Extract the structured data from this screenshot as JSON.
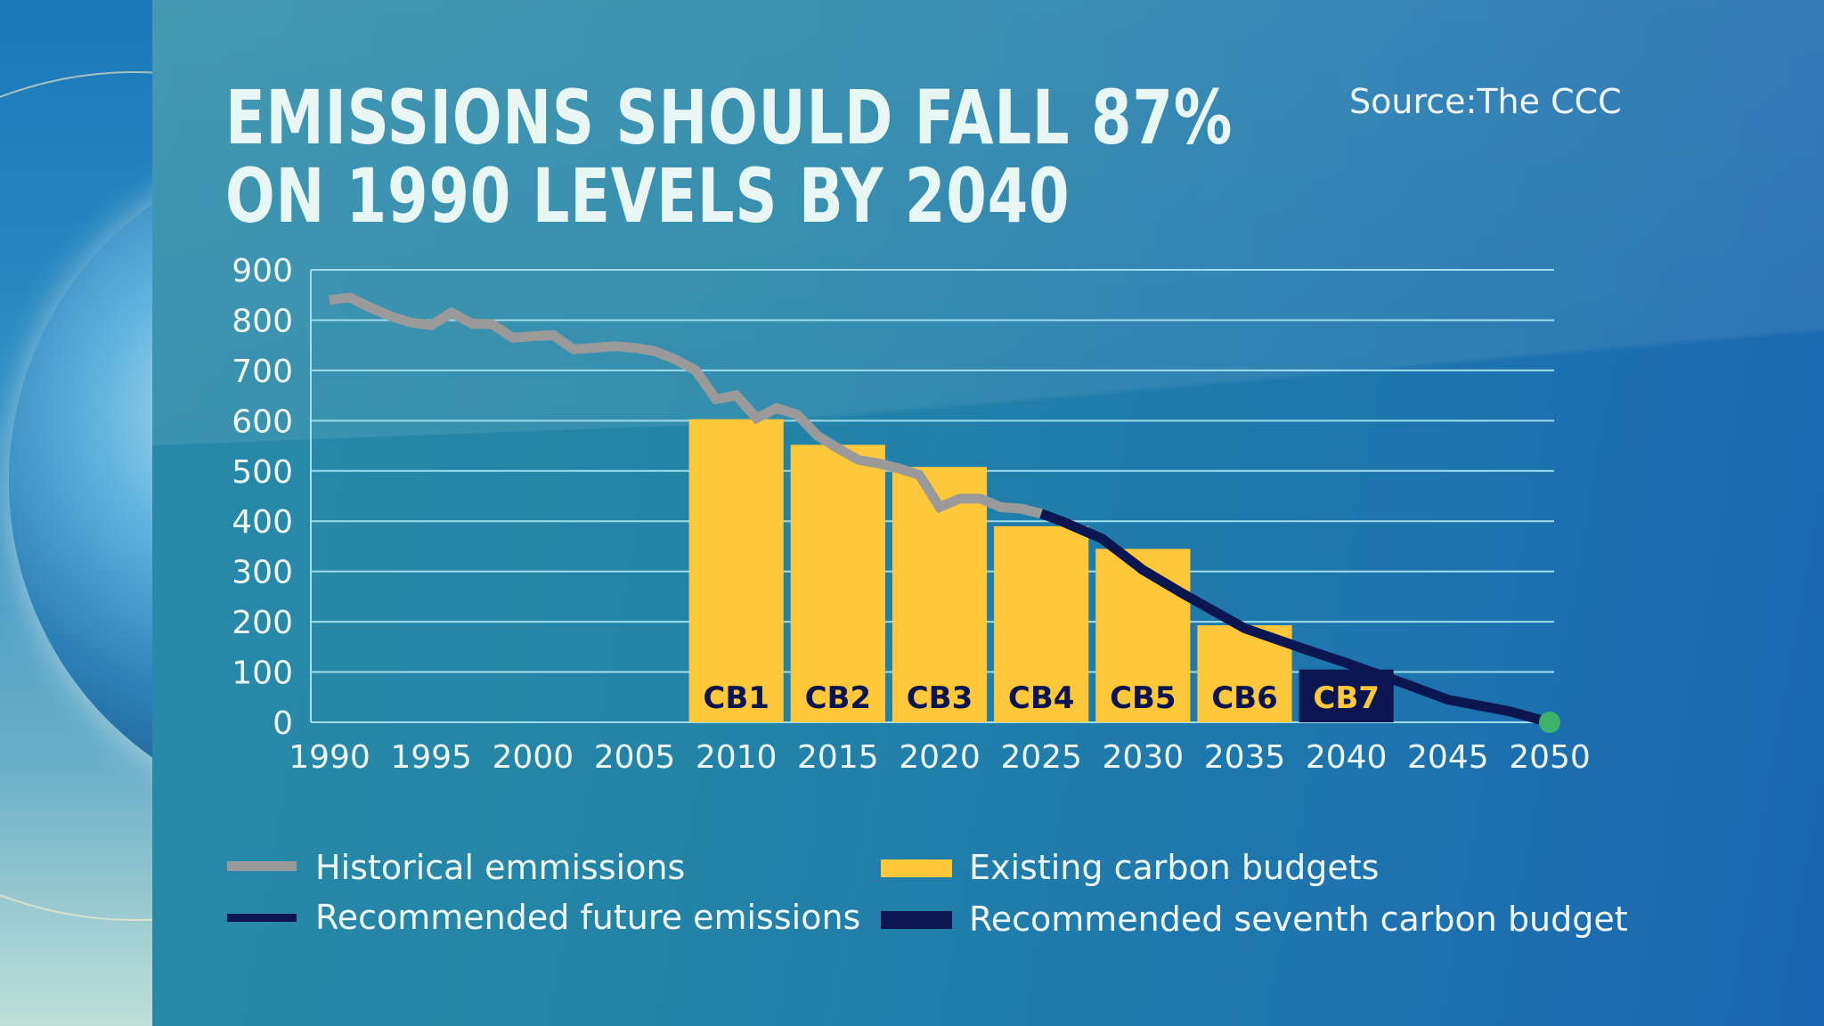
{
  "title": "EMISSIONS SHOULD FALL 87% ON 1990 LEVELS BY 2040",
  "source": "Source:The CCC",
  "colors": {
    "historical": "#9a9a9a",
    "future": "#0b1650",
    "budget": "#ffc83a",
    "budget7": "#0b1650",
    "endpoint": "#3cb26a",
    "grid": "#9fdcec"
  },
  "chart_data": {
    "type": "bar+line",
    "xlim": [
      1990,
      2050
    ],
    "ylim": [
      0,
      900
    ],
    "grid": true,
    "legend_position": "bottom",
    "x_ticks": [
      "1990",
      "1995",
      "2000",
      "2005",
      "2010",
      "2015",
      "2020",
      "2025",
      "2030",
      "2035",
      "2040",
      "2045",
      "2050"
    ],
    "y_ticks": [
      "0",
      "100",
      "200",
      "300",
      "400",
      "500",
      "600",
      "700",
      "800",
      "900"
    ],
    "budgets": [
      {
        "label": "CB1",
        "period": [
          2008,
          2012
        ],
        "value": 603
      },
      {
        "label": "CB2",
        "period": [
          2013,
          2017
        ],
        "value": 552
      },
      {
        "label": "CB3",
        "period": [
          2018,
          2022
        ],
        "value": 508
      },
      {
        "label": "CB4",
        "period": [
          2023,
          2027
        ],
        "value": 390
      },
      {
        "label": "CB5",
        "period": [
          2028,
          2032
        ],
        "value": 345
      },
      {
        "label": "CB6",
        "period": [
          2033,
          2037
        ],
        "value": 193
      },
      {
        "label": "CB7",
        "period": [
          2038,
          2042
        ],
        "value": 105,
        "recommended": true
      }
    ],
    "historical": {
      "x": [
        1990,
        1991,
        1992,
        1993,
        1994,
        1995,
        1996,
        1997,
        1998,
        1999,
        2000,
        2001,
        2002,
        2003,
        2004,
        2005,
        2006,
        2007,
        2008,
        2009,
        2010,
        2011,
        2012,
        2013,
        2014,
        2015,
        2016,
        2017,
        2018,
        2019,
        2020,
        2021,
        2022,
        2023,
        2024,
        2025
      ],
      "y": [
        840,
        845,
        825,
        808,
        795,
        790,
        815,
        793,
        792,
        765,
        768,
        770,
        742,
        745,
        748,
        745,
        738,
        722,
        700,
        643,
        650,
        605,
        625,
        612,
        570,
        545,
        522,
        515,
        505,
        492,
        428,
        445,
        445,
        428,
        425,
        415
      ]
    },
    "future": {
      "x": [
        2025,
        2026,
        2028,
        2030,
        2032,
        2035,
        2038,
        2040,
        2043,
        2045,
        2048,
        2050
      ],
      "y": [
        415,
        400,
        365,
        303,
        255,
        187,
        145,
        118,
        75,
        45,
        22,
        0
      ]
    }
  },
  "legend": [
    {
      "label": "Historical emmissions",
      "kind": "line",
      "color": "#9a9a9a"
    },
    {
      "label": "Recommended future emissions",
      "kind": "line",
      "color": "#0b1650"
    },
    {
      "label": "Existing carbon budgets",
      "kind": "bar",
      "color": "#ffc83a"
    },
    {
      "label": "Recommended seventh carbon budget",
      "kind": "bar",
      "color": "#0b1650"
    }
  ]
}
